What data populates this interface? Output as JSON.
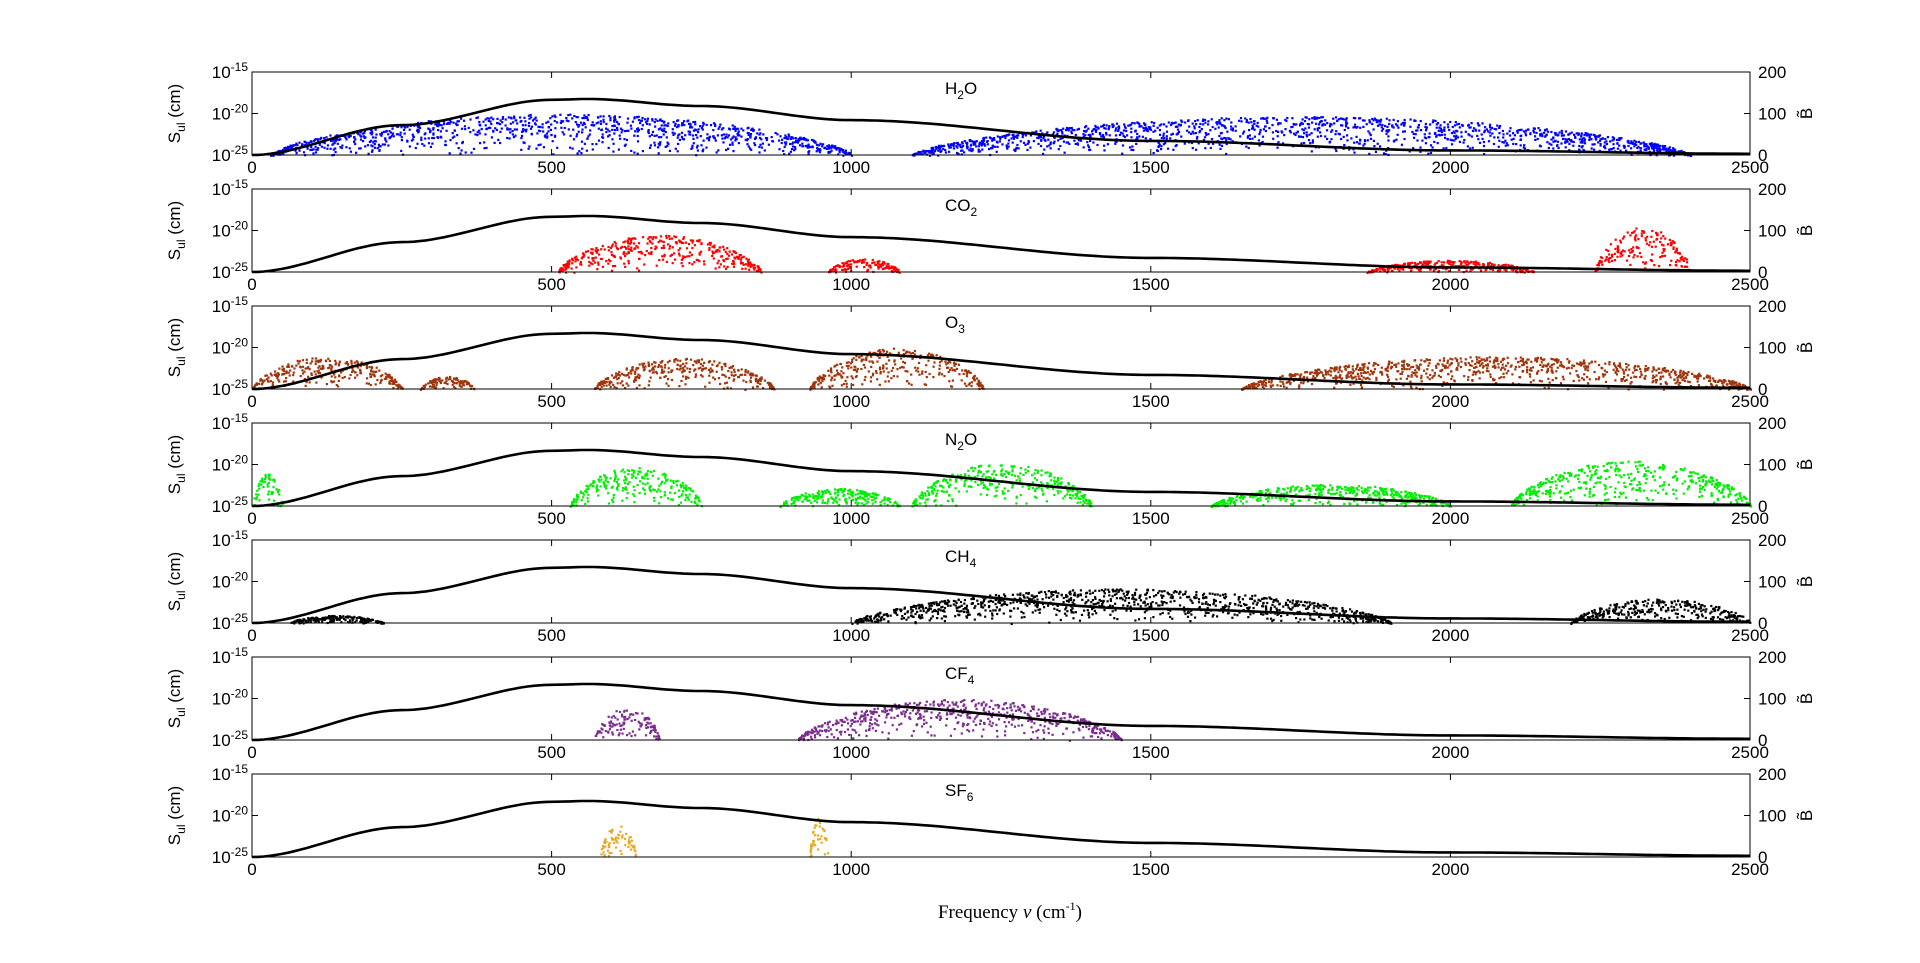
{
  "chart_data": {
    "type": "scatter",
    "description_x": "frequency",
    "xlabel": {
      "prefix": "Frequency ",
      "nu": "ν",
      "unit_open": " (cm",
      "unit_exp": "-1",
      "unit_close": ")"
    },
    "xlim": [
      0,
      2500
    ],
    "x_ticks": [
      0,
      500,
      1000,
      1500,
      2000,
      2500
    ],
    "left_axis": {
      "label_main": "S",
      "label_sub": "ul",
      "label_unit": " (cm)",
      "ticks": [
        {
          "base": "10",
          "exp": "-15"
        },
        {
          "base": "10",
          "exp": "-20"
        },
        {
          "base": "10",
          "exp": "-25"
        }
      ],
      "log_range": [
        -25,
        -15
      ]
    },
    "right_axis": {
      "label": "B̃",
      "ticks": [
        0,
        100,
        200
      ],
      "ylim": [
        0,
        200
      ]
    },
    "planck_curve": {
      "color": "#000000",
      "peak_x": 560,
      "peak_value": 135,
      "values_at_x": {
        "0": 0,
        "250": 72,
        "500": 133,
        "560": 135,
        "750": 118,
        "1000": 84,
        "1500": 34,
        "2000": 11,
        "2500": 3
      }
    },
    "panels": [
      {
        "molecule": "H",
        "sub": "2",
        "suffix": "O",
        "color": "#0000ff",
        "bands": [
          {
            "x": [
              30,
              1000
            ],
            "ymax": -20
          },
          {
            "x": [
              1100,
              2400
            ],
            "ymax": -20.3
          }
        ]
      },
      {
        "molecule": "CO",
        "sub": "2",
        "suffix": "",
        "color": "#ff0000",
        "bands": [
          {
            "x": [
              510,
              850
            ],
            "ymax": -20.5
          },
          {
            "x": [
              960,
              1080
            ],
            "ymax": -23.3
          },
          {
            "x": [
              1860,
              2140
            ],
            "ymax": -23.5
          },
          {
            "x": [
              2240,
              2400
            ],
            "ymax": -19.5
          }
        ]
      },
      {
        "molecule": "O",
        "sub": "3",
        "suffix": "",
        "color": "#a0350b",
        "bands": [
          {
            "x": [
              0,
              250
            ],
            "ymax": -21
          },
          {
            "x": [
              280,
              370
            ],
            "ymax": -23.4
          },
          {
            "x": [
              570,
              870
            ],
            "ymax": -21.2
          },
          {
            "x": [
              930,
              1220
            ],
            "ymax": -20
          },
          {
            "x": [
              1650,
              2500
            ],
            "ymax": -21
          }
        ]
      },
      {
        "molecule": "N",
        "sub": "2",
        "suffix": "O",
        "color": "#00ee00",
        "bands": [
          {
            "x": [
              0,
              50
            ],
            "ymax": -21
          },
          {
            "x": [
              530,
              750
            ],
            "ymax": -20.2
          },
          {
            "x": [
              880,
              1080
            ],
            "ymax": -22.8
          },
          {
            "x": [
              1100,
              1400
            ],
            "ymax": -19.8
          },
          {
            "x": [
              1600,
              2000
            ],
            "ymax": -22.3
          },
          {
            "x": [
              2100,
              2500
            ],
            "ymax": -19.5
          }
        ]
      },
      {
        "molecule": "CH",
        "sub": "4",
        "suffix": "",
        "color": "#000000",
        "bands": [
          {
            "x": [
              60,
              220
            ],
            "ymax": -24
          },
          {
            "x": [
              1000,
              1900
            ],
            "ymax": -20.8
          },
          {
            "x": [
              2200,
              2500
            ],
            "ymax": -22
          }
        ]
      },
      {
        "molecule": "CF",
        "sub": "4",
        "suffix": "",
        "color": "#7b2d8e",
        "bands": [
          {
            "x": [
              570,
              680
            ],
            "ymax": -21
          },
          {
            "x": [
              910,
              1450
            ],
            "ymax": -20
          }
        ]
      },
      {
        "molecule": "SF",
        "sub": "6",
        "suffix": "",
        "color": "#e8a821",
        "bands": [
          {
            "x": [
              580,
              640
            ],
            "ymax": -21
          },
          {
            "x": [
              930,
              960
            ],
            "ymax": -20
          }
        ]
      }
    ]
  }
}
